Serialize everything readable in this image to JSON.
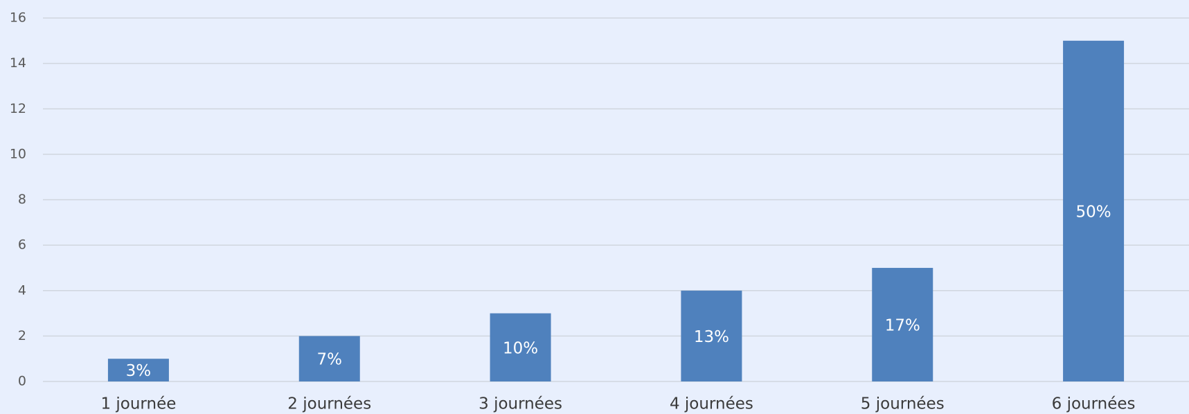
{
  "chart_data": {
    "type": "bar",
    "categories": [
      "1 journée",
      "2 journées",
      "3 journées",
      "4 journées",
      "5 journées",
      "6 journées"
    ],
    "values": [
      1,
      2,
      3,
      4,
      5,
      15
    ],
    "shares": [
      {
        "value": 3,
        "label": "3%"
      },
      {
        "value": 7,
        "label": "7%"
      },
      {
        "value": 10,
        "label": "10%"
      },
      {
        "value": 13,
        "label": "13%"
      },
      {
        "value": 17,
        "label": "17%"
      },
      {
        "value": 50,
        "label": "50%"
      }
    ],
    "color": "#4f81bd",
    "ylim": [
      0,
      16
    ],
    "yticks": [
      0,
      2,
      4,
      6,
      8,
      10,
      12,
      14,
      16
    ],
    "grid": true
  }
}
